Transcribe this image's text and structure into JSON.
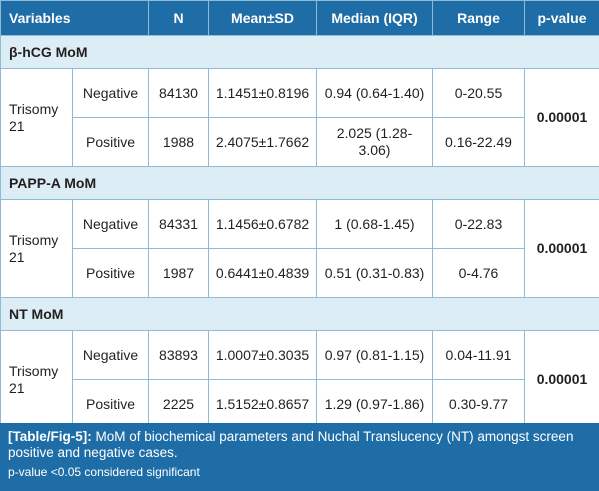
{
  "headers": [
    "Variables",
    "N",
    "Mean±SD",
    "Median (IQR)",
    "Range",
    "p-value"
  ],
  "sections": [
    {
      "title": "β-hCG MoM",
      "group": "Trisomy 21",
      "pvalue": "0.00001",
      "rows": [
        {
          "label": "Negative",
          "n": "84130",
          "mean": "1.1451±0.8196",
          "median": "0.94 (0.64-1.40)",
          "range": "0-20.55"
        },
        {
          "label": "Positive",
          "n": "1988",
          "mean": "2.4075±1.7662",
          "median": "2.025 (1.28-3.06)",
          "range": "0.16-22.49"
        }
      ]
    },
    {
      "title": "PAPP-A MoM",
      "group": "Trisomy 21",
      "pvalue": "0.00001",
      "rows": [
        {
          "label": "Negative",
          "n": "84331",
          "mean": "1.1456±0.6782",
          "median": "1 (0.68-1.45)",
          "range": "0-22.83"
        },
        {
          "label": "Positive",
          "n": "1987",
          "mean": "0.6441±0.4839",
          "median": "0.51 (0.31-0.83)",
          "range": "0-4.76"
        }
      ]
    },
    {
      "title": "NT MoM",
      "group": "Trisomy 21",
      "pvalue": "0.00001",
      "rows": [
        {
          "label": "Negative",
          "n": "83893",
          "mean": "1.0007±0.3035",
          "median": "0.97 (0.81-1.15)",
          "range": "0.04-11.91"
        },
        {
          "label": "Positive",
          "n": "2225",
          "mean": "1.5152±0.8657",
          "median": "1.29 (0.97-1.86)",
          "range": "0.30-9.77"
        }
      ]
    }
  ],
  "caption": {
    "ref": "[Table/Fig-5]:",
    "text": " MoM of biochemical parameters and Nuchal Translucency (NT) amongst screen positive and negative cases.",
    "note": "p-value <0.05 considered significant"
  },
  "colors": {
    "header_bg": "#1f6da6",
    "section_bg": "#dcedf5",
    "border": "#8fbcd4"
  }
}
